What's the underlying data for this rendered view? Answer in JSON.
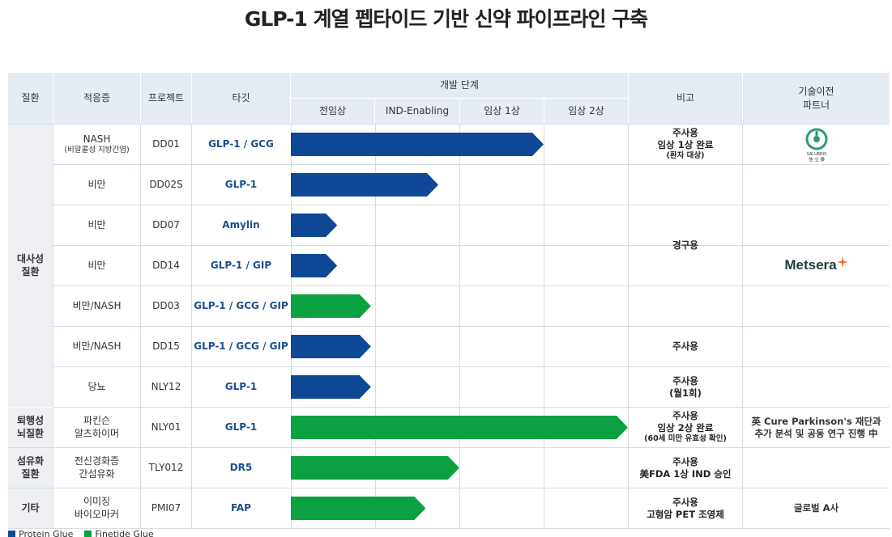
{
  "title": "GLP-1 계열 펩타이드 기반 신약 파이프라인 구축",
  "colors": {
    "protein": "#0e4896",
    "finetide": "#0aa141",
    "header_bg": "#e6ecf3",
    "grid": "#d7dde5"
  },
  "headers": {
    "disease": "질환",
    "indication": "적응증",
    "project": "프로젝트",
    "target": "타깃",
    "dev_stage": "개발 단계",
    "stages": [
      "전임상",
      "IND-Enabling",
      "임상 1상",
      "임상 2상"
    ],
    "note": "비고",
    "partner_line1": "기술이전",
    "partner_line2": "파트너"
  },
  "diseases": [
    {
      "line1": "대사성",
      "line2": "질환"
    },
    {
      "line1": "퇴행성",
      "line2": "뇌질환"
    },
    {
      "line1": "섬유화",
      "line2": "질환"
    },
    {
      "line1": "기타",
      "line2": ""
    }
  ],
  "rows": [
    {
      "indication": "NASH",
      "indication_sub": "(비알콜성 지방간염)",
      "project": "DD01",
      "target": "GLP-1 / GCG"
    },
    {
      "indication": "비만",
      "indication_sub": "",
      "project": "DD02S",
      "target": "GLP-1"
    },
    {
      "indication": "비만",
      "indication_sub": "",
      "project": "DD07",
      "target": "Amylin"
    },
    {
      "indication": "비만",
      "indication_sub": "",
      "project": "DD14",
      "target": "GLP-1 / GIP"
    },
    {
      "indication": "비만/NASH",
      "indication_sub": "",
      "project": "DD03",
      "target": "GLP-1 / GCG / GIP"
    },
    {
      "indication": "비만/NASH",
      "indication_sub": "",
      "project": "DD15",
      "target": "GLP-1 / GCG / GIP"
    },
    {
      "indication": "당뇨",
      "indication_sub": "",
      "project": "NLY12",
      "target": "GLP-1"
    },
    {
      "indication": "파킨슨",
      "indication_sub": "알츠하이머",
      "project": "NLY01",
      "target": "GLP-1"
    },
    {
      "indication": "전신경화증",
      "indication_sub": "간섬유화",
      "project": "TLY012",
      "target": "DR5"
    },
    {
      "indication": "이미징",
      "indication_sub": "바이오마커",
      "project": "PMI07",
      "target": "FAP"
    }
  ],
  "notes": {
    "dd01_1": "주사용",
    "dd01_2": "임상 1상 완료",
    "dd01_3": "(환자 대상)",
    "oral": "경구용",
    "dd15": "주사용",
    "nly12_1": "주사용",
    "nly12_2": "(월1회)",
    "nly01_1": "주사용",
    "nly01_2": "임상 2상 완료",
    "nly01_3": "(60세 미만 유효성 확인)",
    "tly012_1": "주사용",
    "tly012_2": "美FDA 1상 IND 승인",
    "pmi07_1": "주사용",
    "pmi07_2": "고형암 PET 조영제"
  },
  "partners": {
    "salubris_logo_text": "SALUBRIS",
    "salubris_logo_sub": "信 立 泰",
    "metsera_logo_text": "Metsera",
    "cure_line1": "英 Cure Parkinson's 재단과",
    "cure_line2": "추가 분석 및 공동 연구 진행 中",
    "pmi07": "글로벌 A사"
  },
  "legend": {
    "protein": "Protein Glue",
    "finetide": "Finetide Glue"
  },
  "chart_data": {
    "type": "bar",
    "orientation": "horizontal",
    "x_stages": [
      "전임상",
      "IND-Enabling",
      "임상 1상",
      "임상 2상"
    ],
    "xlim": [
      0,
      4
    ],
    "categories": [
      "DD01",
      "DD02S",
      "DD07",
      "DD14",
      "DD03",
      "DD15",
      "NLY12",
      "NLY01",
      "TLY012",
      "PMI07"
    ],
    "values": [
      3.0,
      1.75,
      0.55,
      0.55,
      0.95,
      0.95,
      0.95,
      4.0,
      2.0,
      1.6
    ],
    "platform": [
      "protein",
      "protein",
      "protein",
      "protein",
      "finetide",
      "protein",
      "protein",
      "finetide",
      "finetide",
      "finetide"
    ]
  }
}
